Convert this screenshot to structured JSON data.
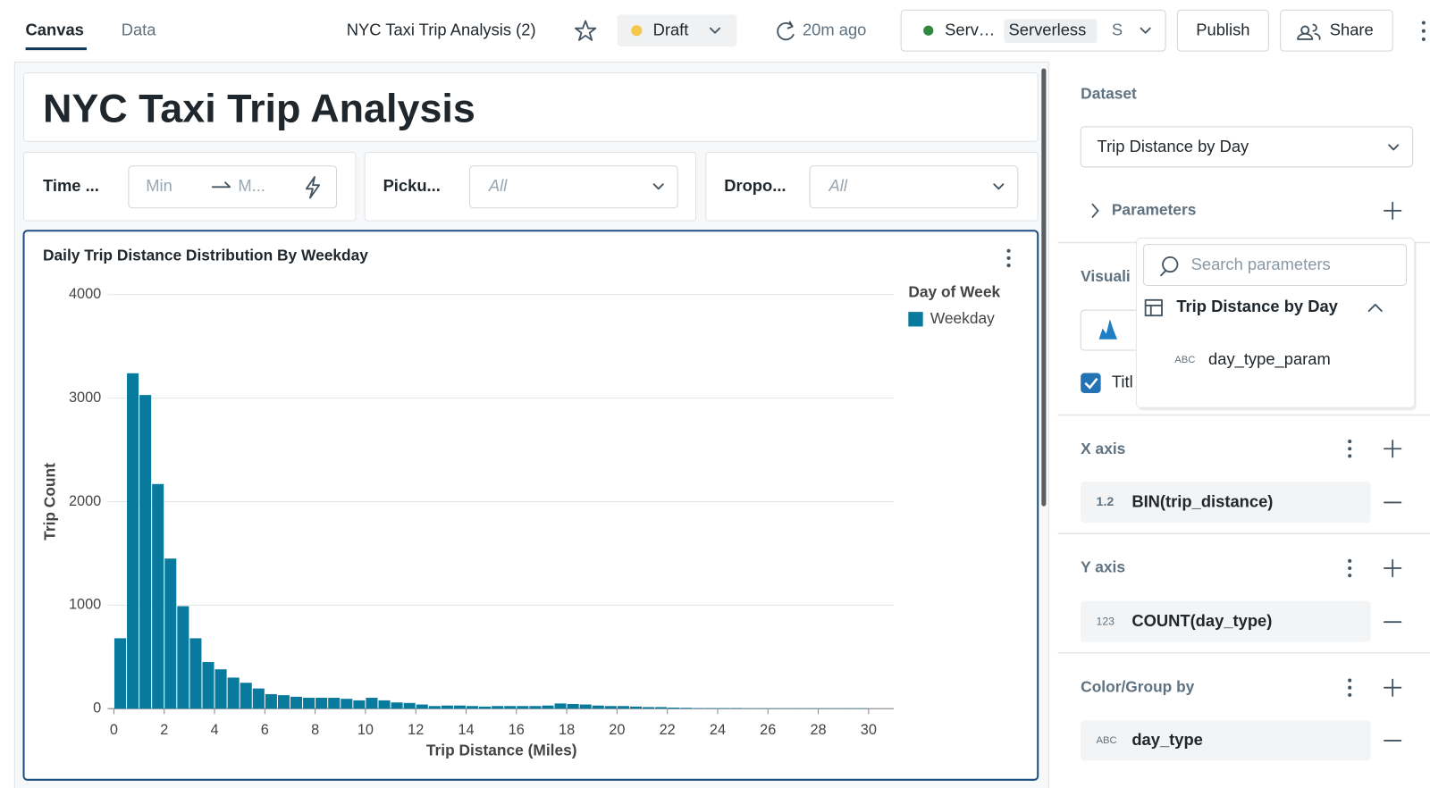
{
  "header": {
    "tabs": [
      "Canvas",
      "Data"
    ],
    "dashboard_name": "NYC Taxi Trip Analysis (2)",
    "status": "Draft",
    "refreshed": "20m ago",
    "compute": "Serv…",
    "compute_tag": "Serverless",
    "compute_extra": "S",
    "publish": "Publish",
    "share": "Share"
  },
  "dashboard": {
    "title": "NYC Taxi Trip Analysis",
    "filters": [
      {
        "label": "Time ...",
        "min": "Min",
        "max": "M..."
      },
      {
        "label": "Picku...",
        "value": "All"
      },
      {
        "label": "Dropo...",
        "value": "All"
      }
    ]
  },
  "chart_data": {
    "type": "histogram",
    "title": "Daily Trip Distance Distribution By Weekday",
    "x_label": "Trip Distance (Miles)",
    "y_label": "Trip Count",
    "legend_title": "Day of Week",
    "bins": [
      0,
      0.5,
      1,
      1.5,
      2,
      2.5,
      3,
      3.5,
      4,
      4.5,
      5,
      5.5,
      6,
      6.5,
      7,
      7.5,
      8,
      8.5,
      9,
      9.5,
      10,
      10.5,
      11,
      11.5,
      12,
      12.5,
      13,
      13.5,
      14,
      14.5,
      15,
      15.5,
      16,
      16.5,
      17,
      17.5,
      18,
      18.5,
      19,
      19.5,
      20,
      20.5,
      21,
      21.5,
      22,
      22.5,
      23,
      23.5,
      24,
      24.5,
      25,
      25.5,
      26,
      26.5,
      27,
      27.5,
      28,
      28.5,
      29,
      29.5,
      30
    ],
    "series": [
      {
        "name": "Weekday",
        "color": "#077a9d",
        "values": [
          680,
          3240,
          3030,
          2170,
          1450,
          990,
          680,
          450,
          380,
          300,
          250,
          195,
          140,
          130,
          115,
          105,
          105,
          105,
          95,
          80,
          105,
          80,
          60,
          55,
          40,
          25,
          30,
          30,
          25,
          20,
          25,
          25,
          25,
          25,
          30,
          50,
          45,
          40,
          30,
          25,
          25,
          20,
          15,
          15,
          10,
          8,
          5,
          5,
          5,
          5,
          3,
          3,
          3,
          3,
          3,
          3,
          3,
          3,
          3,
          3
        ]
      }
    ],
    "xlim": [
      -0.25,
      31
    ],
    "xticks": [
      0,
      2,
      4,
      6,
      8,
      10,
      12,
      14,
      16,
      18,
      20,
      22,
      24,
      26,
      28,
      30
    ],
    "ylim": [
      0,
      4000
    ],
    "yticks": [
      0,
      1000,
      2000,
      3000,
      4000
    ],
    "grid": true
  },
  "panel": {
    "dataset_label": "Dataset",
    "dataset": "Trip Distance by Day",
    "parameters": "Parameters",
    "visualization": "Visuali",
    "title_checkbox": "Titl",
    "x_axis": {
      "label": "X axis",
      "type_icon": "1.2",
      "field": "BIN(trip_distance)"
    },
    "y_axis": {
      "label": "Y axis",
      "type_icon": "123",
      "field": "COUNT(day_type)"
    },
    "color": {
      "label": "Color/Group by",
      "type_icon": "ABC",
      "field": "day_type"
    }
  },
  "popover": {
    "search_placeholder": "Search parameters",
    "dataset": "Trip Distance by Day",
    "param_type": "ABC",
    "param": "day_type_param"
  }
}
